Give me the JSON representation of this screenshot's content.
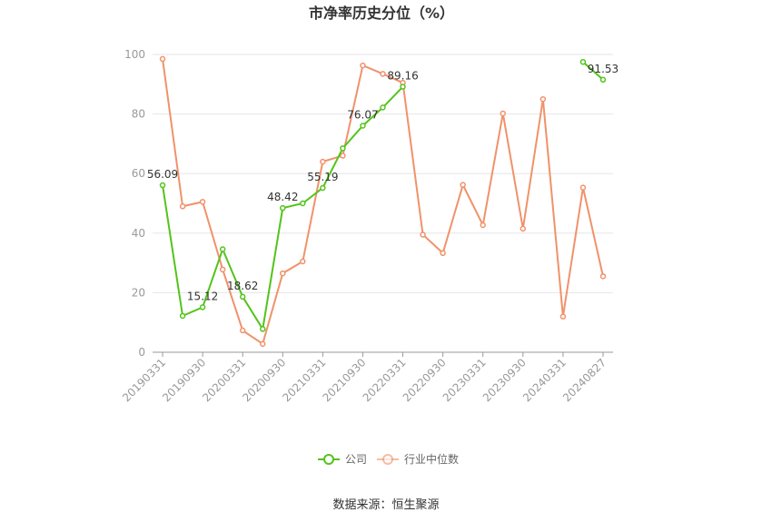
{
  "chart_data": {
    "type": "line",
    "title": "市净率历史分位（%）",
    "source": "数据来源：恒生聚源",
    "ylim": [
      0,
      100
    ],
    "yticks": [
      0,
      20,
      40,
      60,
      80,
      100
    ],
    "grid": true,
    "legend_position": "bottom",
    "x": [
      "20190331",
      "20190630",
      "20190930",
      "20191231",
      "20200331",
      "20200630",
      "20200930",
      "20201231",
      "20210331",
      "20210630",
      "20210930",
      "20211231",
      "20220331",
      "20220630",
      "20220930",
      "20221231",
      "20230331",
      "20230630",
      "20230930",
      "20231231",
      "20240331",
      "20240630",
      "20240827"
    ],
    "x_tick_labels": [
      "20190331",
      "20190930",
      "20200331",
      "20200930",
      "20210331",
      "20210930",
      "20220331",
      "20220930",
      "20230331",
      "20230930",
      "20240331",
      "20240827"
    ],
    "series": [
      {
        "name": "公司",
        "color": "#52c41a",
        "values": [
          56.09,
          12.2,
          15.12,
          34.6,
          18.62,
          7.8,
          48.42,
          50.0,
          55.19,
          68.5,
          76.07,
          82.2,
          89.16,
          null,
          null,
          null,
          null,
          null,
          null,
          null,
          null,
          97.5,
          91.53
        ],
        "labels": [
          {
            "index": 0,
            "text": "56.09"
          },
          {
            "index": 2,
            "text": "15.12"
          },
          {
            "index": 4,
            "text": "18.62"
          },
          {
            "index": 6,
            "text": "48.42"
          },
          {
            "index": 8,
            "text": "55.19"
          },
          {
            "index": 10,
            "text": "76.07"
          },
          {
            "index": 12,
            "text": "89.16"
          },
          {
            "index": 22,
            "text": "91.53"
          }
        ]
      },
      {
        "name": "行业中位数",
        "color": "#f0926a",
        "values": [
          98.5,
          49.0,
          50.5,
          27.8,
          7.3,
          2.8,
          26.5,
          30.5,
          64.0,
          66.0,
          96.3,
          93.5,
          90.5,
          39.5,
          33.3,
          56.2,
          42.7,
          80.2,
          41.5,
          85.0,
          12.0,
          55.3,
          25.5
        ]
      }
    ]
  }
}
